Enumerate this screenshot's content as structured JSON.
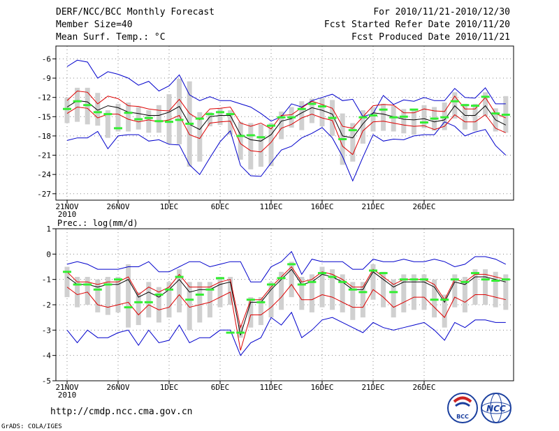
{
  "header": {
    "title": "DERF/NCC/BCC Monthly Forecast",
    "member_size": "Member Size=40",
    "variable": "Mean Surf. Temp.: °C",
    "for_range": "For 2010/11/21-2010/12/30",
    "started_date": "Fcst Started Refer Date 2010/11/20",
    "produced_date": "Fcst Produced Date 2010/11/21"
  },
  "footer": {
    "url": "http://cmdp.ncc.cma.gov.cn",
    "credit": "GrADS: COLA/IGES",
    "logo_bcc_text": "BCC",
    "logo_ncc_text": "NCC"
  },
  "colors": {
    "envelope": "#0000cc",
    "spread": "#dd0000",
    "mean": "#000000",
    "bar": "#d0d0d0",
    "marker": "#33ee33",
    "grid": "#888888"
  },
  "chart_data": [
    {
      "type": "line",
      "title": "Mean Surf. Temp.: °C",
      "x_ticks": [
        "21NOV",
        "26NOV",
        "1DEC",
        "6DEC",
        "11DEC",
        "16DEC",
        "21DEC",
        "26DEC"
      ],
      "x_year": "2010",
      "y_ticks": [
        -6,
        -9,
        -12,
        -15,
        -18,
        -21,
        -24,
        -27
      ],
      "ylim": [
        -28,
        -4
      ],
      "series": [
        {
          "name": "max",
          "values": [
            -7.2,
            -6.2,
            -6.5,
            -9,
            -8,
            -8.4,
            -9,
            -10.1,
            -9.5,
            -11,
            -10.2,
            -8.5,
            -11.6,
            -12.5,
            -11.9,
            -12.5,
            -12.5,
            -13,
            -13.5,
            -14.5,
            -15.7,
            -15,
            -13,
            -13.5,
            -12.5,
            -12,
            -11.5,
            -12.5,
            -12.3,
            -15,
            -14.5,
            -11.7,
            -13.1,
            -12.4,
            -12.6,
            -12,
            -12.5,
            -12.5,
            -10.6,
            -12,
            -12.1,
            -10.5,
            -13,
            -13
          ]
        },
        {
          "name": "upper",
          "values": [
            -12.5,
            -11,
            -11.2,
            -13,
            -11.8,
            -12.2,
            -13.3,
            -13.4,
            -13.8,
            -14,
            -14.1,
            -12.3,
            -14.5,
            -15.5,
            -13.8,
            -13.7,
            -13.5,
            -16,
            -16.5,
            -16,
            -16.9,
            -14.8,
            -14.7,
            -13.6,
            -12.6,
            -13.1,
            -13.7,
            -16.5,
            -16.8,
            -15,
            -13.3,
            -13.1,
            -13.2,
            -14.4,
            -14.4,
            -13.8,
            -14.1,
            -14.2,
            -11.8,
            -13.8,
            -13.8,
            -12,
            -14.5,
            -15.2
          ]
        },
        {
          "name": "mean",
          "values": [
            -13.5,
            -12.5,
            -12.7,
            -14,
            -13.3,
            -13.6,
            -14.3,
            -14.5,
            -14.8,
            -14.8,
            -14.3,
            -13.4,
            -16.2,
            -17,
            -15,
            -14.8,
            -14.8,
            -17.8,
            -18.6,
            -18.8,
            -17.8,
            -15.7,
            -15.3,
            -14.4,
            -13.6,
            -14,
            -14.6,
            -18,
            -18.3,
            -16.1,
            -14.4,
            -14.6,
            -15,
            -15.4,
            -15.5,
            -15.3,
            -15.8,
            -15.5,
            -13.3,
            -14.8,
            -14.8,
            -13.3,
            -15.5,
            -16.3
          ]
        },
        {
          "name": "lower",
          "values": [
            -14.5,
            -13.5,
            -13.7,
            -15.2,
            -14.6,
            -14.6,
            -15.4,
            -15.8,
            -15.5,
            -15.8,
            -15.5,
            -14.8,
            -17.8,
            -18.4,
            -16,
            -15.8,
            -15.7,
            -19.2,
            -20.3,
            -20.5,
            -19,
            -16.8,
            -16.2,
            -15.2,
            -14.6,
            -15.2,
            -15.6,
            -19.6,
            -20.9,
            -17.2,
            -15.8,
            -15.7,
            -16,
            -16.3,
            -16.5,
            -16.4,
            -17,
            -16.5,
            -14.7,
            -15.8,
            -15.8,
            -14.7,
            -16.8,
            -17.5
          ]
        },
        {
          "name": "min",
          "values": [
            -18.7,
            -18.3,
            -18.3,
            -17.3,
            -20,
            -18,
            -17.8,
            -17.8,
            -18.8,
            -18.6,
            -19.3,
            -19.4,
            -22.5,
            -24,
            -21.4,
            -18.9,
            -17.2,
            -22.6,
            -24.2,
            -24.3,
            -22.2,
            -20.2,
            -19.6,
            -18.3,
            -17.6,
            -16.7,
            -18.3,
            -21.2,
            -25,
            -21.3,
            -17.8,
            -18.8,
            -18.5,
            -18.6,
            -18,
            -17.8,
            -17.8,
            -15.8,
            -16.5,
            -18,
            -17.4,
            -17,
            -19.5,
            -21
          ]
        },
        {
          "name": "ensemble_bar_top",
          "values": [
            -12,
            -10.5,
            -10.5,
            -11.3,
            -14,
            -13,
            -12.8,
            -13.5,
            -14,
            -13.2,
            -11.5,
            -9.1,
            -9.5,
            -14.3,
            -14.3,
            -13.7,
            -14,
            -15.8,
            -16,
            -16.2,
            -16,
            -14.2,
            -13.5,
            -12.6,
            -12.2,
            -12.1,
            -12.4,
            -14.5,
            -16,
            -14,
            -13.5,
            -13,
            -13.3,
            -13.8,
            -14,
            -13.2,
            -13.5,
            -12.8,
            -11.2,
            -13,
            -13,
            -11.2,
            -13.7,
            -11.8
          ]
        },
        {
          "name": "ensemble_bar_bottom",
          "values": [
            -16,
            -15.8,
            -16.2,
            -16.4,
            -18.3,
            -17.3,
            -17.3,
            -17,
            -17.5,
            -17.5,
            -19.2,
            -19.3,
            -22.8,
            -22,
            -16.5,
            -16.3,
            -17.8,
            -21.7,
            -23.2,
            -22.8,
            -22.7,
            -18.5,
            -16.7,
            -17.1,
            -16,
            -16.5,
            -18,
            -22.5,
            -22,
            -19.2,
            -17.3,
            -17.2,
            -17.3,
            -17.6,
            -17.8,
            -16.8,
            -17.2,
            -17.1,
            -15.3,
            -17,
            -17.2,
            -14.9,
            -17.3,
            -17.5
          ]
        },
        {
          "name": "ensemble_median",
          "values": [
            -13.8,
            -12.6,
            -13.2,
            -14.3,
            -14.6,
            -16.8,
            -14.4,
            -15.4,
            -15.2,
            -15.7,
            -15.8,
            -15.5,
            -16.1,
            -15.3,
            -14.6,
            -14.3,
            -14.6,
            -18,
            -17.9,
            -18.2,
            -16.4,
            -15.1,
            -15.1,
            -13.8,
            -13,
            -13.4,
            -15.2,
            -18.5,
            -17.1,
            -15.1,
            -14.8,
            -13.9,
            -15.1,
            -15,
            -13.9,
            -15.9,
            -15.3,
            -15.1,
            -12.6,
            -13.2,
            -13.3,
            -11.9,
            -14.5,
            -14.7
          ]
        }
      ]
    },
    {
      "type": "line",
      "title": "Prec.: log(mm/d)",
      "x_ticks": [
        "21NOV",
        "26NOV",
        "1DEC",
        "6DEC",
        "11DEC",
        "16DEC",
        "21DEC",
        "26DEC"
      ],
      "x_year": "2010",
      "y_ticks": [
        1,
        0,
        -1,
        -2,
        -3,
        -4,
        -5
      ],
      "ylim": [
        -5,
        1
      ],
      "series": [
        {
          "name": "max",
          "values": [
            -0.4,
            -0.3,
            -0.4,
            -0.6,
            -0.6,
            -0.6,
            -0.5,
            -0.5,
            -0.3,
            -0.7,
            -0.7,
            -0.5,
            -0.3,
            -0.3,
            -0.5,
            -0.4,
            -0.3,
            -0.3,
            -1.1,
            -1.1,
            -0.5,
            -0.3,
            0.1,
            -0.8,
            -0.2,
            -0.3,
            -0.3,
            -0.3,
            -0.6,
            -0.6,
            -0.2,
            -0.3,
            -0.3,
            -0.2,
            -0.3,
            -0.3,
            -0.2,
            -0.3,
            -0.5,
            -0.4,
            -0.1,
            -0.1,
            -0.2,
            -0.4
          ]
        },
        {
          "name": "upper",
          "values": [
            -0.7,
            -1.1,
            -1.1,
            -1.2,
            -1.1,
            -1.1,
            -0.9,
            -1.6,
            -1.3,
            -1.5,
            -1.3,
            -0.8,
            -1.3,
            -1.3,
            -1.3,
            -1.1,
            -1,
            -2.9,
            -1.8,
            -1.8,
            -1.3,
            -0.9,
            -0.5,
            -1.1,
            -1,
            -0.7,
            -0.8,
            -1,
            -1.3,
            -1.3,
            -0.6,
            -0.9,
            -1.2,
            -1,
            -1,
            -1,
            -1.2,
            -1.8,
            -1,
            -1.1,
            -0.8,
            -0.8,
            -0.9,
            -1
          ]
        },
        {
          "name": "mean",
          "values": [
            -0.9,
            -1.2,
            -1.2,
            -1.3,
            -1.2,
            -1.2,
            -1,
            -1.7,
            -1.5,
            -1.7,
            -1.4,
            -1,
            -1.5,
            -1.4,
            -1.4,
            -1.2,
            -1.1,
            -3.2,
            -1.9,
            -1.9,
            -1.4,
            -1,
            -0.6,
            -1.2,
            -1.1,
            -0.8,
            -0.9,
            -1.1,
            -1.4,
            -1.4,
            -0.7,
            -1,
            -1.3,
            -1.1,
            -1.1,
            -1.1,
            -1.3,
            -1.9,
            -1.1,
            -1.2,
            -0.9,
            -0.9,
            -1,
            -1.1
          ]
        },
        {
          "name": "lower",
          "values": [
            -1.3,
            -1.6,
            -1.5,
            -2,
            -2.1,
            -2,
            -1.9,
            -2.4,
            -2,
            -2.2,
            -2.1,
            -1.6,
            -2.1,
            -2,
            -1.9,
            -1.7,
            -1.5,
            -3.8,
            -2.4,
            -2.4,
            -2.1,
            -1.7,
            -1.2,
            -1.8,
            -1.8,
            -1.6,
            -1.7,
            -1.9,
            -2.1,
            -2.1,
            -1.4,
            -1.7,
            -2.1,
            -1.9,
            -1.7,
            -1.7,
            -2.1,
            -2.5,
            -1.7,
            -1.9,
            -1.6,
            -1.6,
            -1.7,
            -1.8
          ]
        },
        {
          "name": "min",
          "values": [
            -3,
            -3.5,
            -3,
            -3.3,
            -3.3,
            -3.1,
            -3,
            -3.6,
            -3,
            -3.5,
            -3.4,
            -2.8,
            -3.5,
            -3.3,
            -3.3,
            -3,
            -3,
            -4,
            -3.5,
            -3.3,
            -2.5,
            -2.8,
            -2.3,
            -3.3,
            -3,
            -2.6,
            -2.5,
            -2.7,
            -2.9,
            -3.1,
            -2.7,
            -2.9,
            -3,
            -2.9,
            -2.8,
            -2.7,
            -3,
            -3.4,
            -2.7,
            -2.9,
            -2.6,
            -2.6,
            -2.7,
            -2.7
          ]
        },
        {
          "name": "ensemble_bar_top",
          "values": [
            -0.5,
            -0.9,
            -0.9,
            -1,
            -0.9,
            -0.9,
            -0.4,
            -1.5,
            -1.1,
            -1.3,
            -1.1,
            -0.6,
            -1.1,
            -1.1,
            -1.1,
            -0.9,
            -0.9,
            -2.8,
            -1.7,
            -1.7,
            -1.1,
            -0.7,
            -0.3,
            -0.9,
            -0.8,
            -0.5,
            -0.6,
            -0.8,
            -1.1,
            -1.1,
            -0.4,
            -0.7,
            -1,
            -0.8,
            -0.8,
            -0.8,
            -1,
            -1.6,
            -0.8,
            -0.9,
            -0.6,
            -0.6,
            -0.7,
            -0.8
          ]
        },
        {
          "name": "ensemble_bar_bottom",
          "values": [
            -1.7,
            -2.1,
            -2,
            -2.3,
            -2.4,
            -2.3,
            -2.9,
            -2.8,
            -2.5,
            -2.7,
            -2.5,
            -2.3,
            -3,
            -2.7,
            -2.5,
            -2.1,
            -2,
            -3.3,
            -2.9,
            -2.8,
            -2.5,
            -2.2,
            -1.7,
            -2.2,
            -2.3,
            -2.1,
            -2.2,
            -2.3,
            -2.6,
            -2.5,
            -1.8,
            -2.1,
            -2.5,
            -2.3,
            -2.2,
            -2.2,
            -2.5,
            -2.9,
            -2.1,
            -2.3,
            -2,
            -2,
            -2.1,
            -2.2
          ]
        },
        {
          "name": "ensemble_median",
          "values": [
            -0.7,
            -1.2,
            -1.2,
            -1.4,
            -1.2,
            -1,
            -2.1,
            -1.9,
            -1.9,
            -1.6,
            -1.4,
            -0.9,
            -1.8,
            -1.6,
            -1.4,
            -0.95,
            -3.1,
            -3.1,
            -1.8,
            -1.9,
            -1.2,
            -0.95,
            -0.4,
            -1.2,
            -1.1,
            -0.75,
            -0.9,
            -1.1,
            -1.4,
            -1.5,
            -0.65,
            -0.75,
            -1.5,
            -1,
            -1,
            -1,
            -1.8,
            -1.8,
            -1,
            -1.1,
            -0.75,
            -1,
            -1.05,
            -1
          ]
        }
      ]
    }
  ]
}
